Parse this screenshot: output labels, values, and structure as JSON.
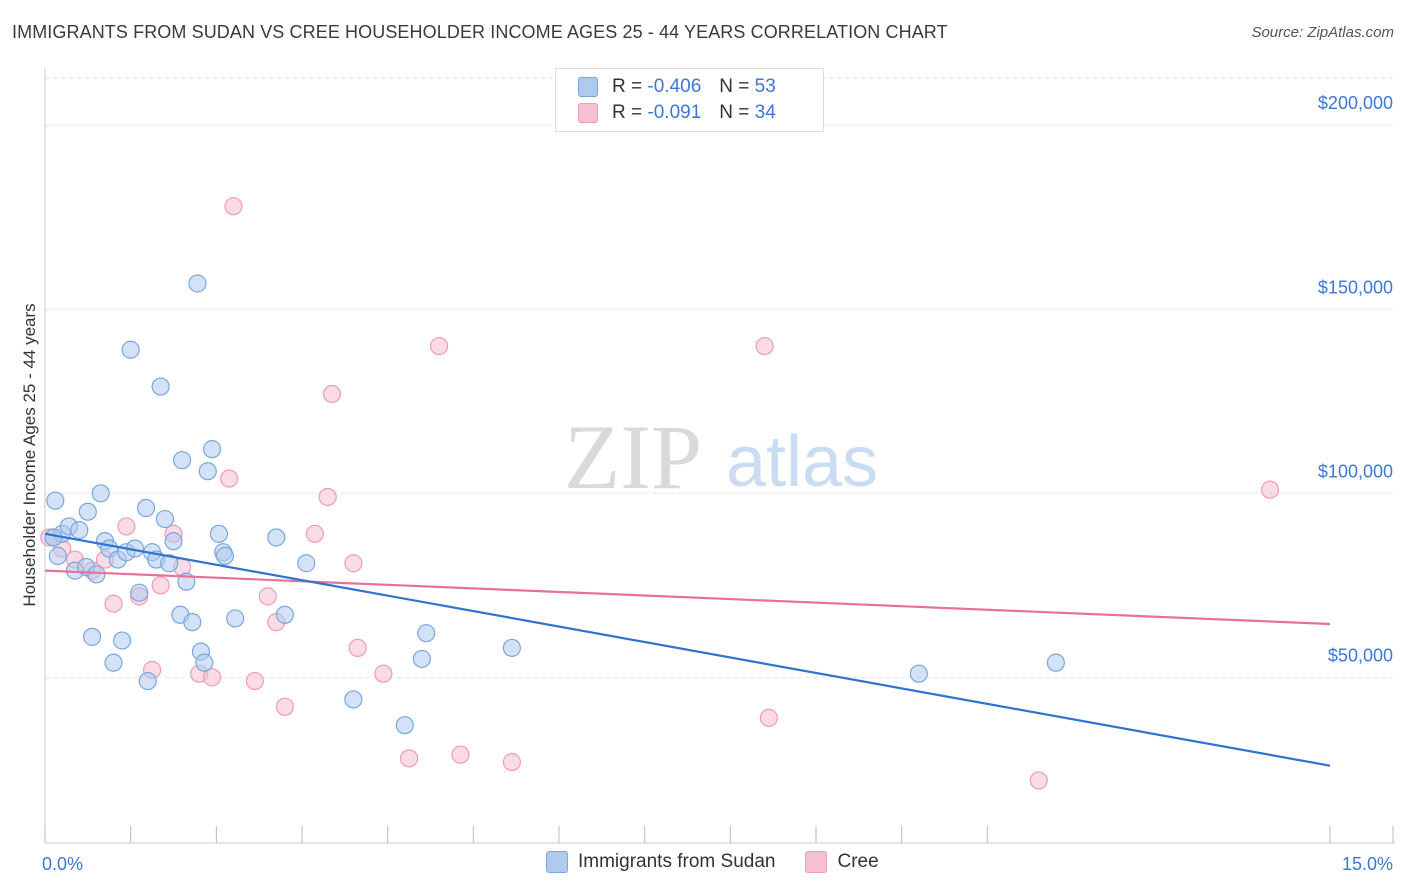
{
  "title": "IMMIGRANTS FROM SUDAN VS CREE HOUSEHOLDER INCOME AGES 25 - 44 YEARS CORRELATION CHART",
  "source": "Source: ZipAtlas.com",
  "watermark": {
    "zip": "ZIP",
    "atlas": "atlas"
  },
  "legend": {
    "rows": [
      {
        "r_label": "R =",
        "r_value": "-0.406",
        "n_label": "N =",
        "n_value": "53"
      },
      {
        "r_label": "R =",
        "r_value": "-0.091",
        "n_label": "N =",
        "n_value": "34"
      }
    ]
  },
  "bottom_legend": {
    "series1": "Immigrants from Sudan",
    "series2": "Cree"
  },
  "colors": {
    "series1_fill": "#aecbee",
    "series1_stroke": "#7aa7de",
    "series1_line": "#2f74d0",
    "series2_fill": "#f7c0d2",
    "series2_stroke": "#ef9bb6",
    "series2_line": "#e8709a",
    "axis_text": "#3b78d4",
    "grid": "#e2e2e2"
  },
  "chart_data": {
    "type": "scatter",
    "title": "IMMIGRANTS FROM SUDAN VS CREE HOUSEHOLDER INCOME AGES 25 - 44 YEARS CORRELATION CHART",
    "xlabel": "",
    "ylabel": "Householder Income Ages 25 - 44 years",
    "xlim": [
      0,
      15
    ],
    "ylim": [
      5000,
      215000
    ],
    "x_tick_labels": [
      "0.0%",
      "15.0%"
    ],
    "y_ticks": [
      50000,
      100000,
      150000,
      200000
    ],
    "y_tick_labels": [
      "$50,000",
      "$100,000",
      "$150,000",
      "$200,000"
    ],
    "series": [
      {
        "name": "Immigrants from Sudan",
        "trend": {
          "x": [
            0.0,
            15.0
          ],
          "y": [
            89000,
            26000
          ]
        },
        "points": [
          {
            "x": 0.1,
            "y": 88000
          },
          {
            "x": 0.12,
            "y": 98000
          },
          {
            "x": 0.15,
            "y": 83000
          },
          {
            "x": 0.2,
            "y": 89000
          },
          {
            "x": 0.28,
            "y": 91000
          },
          {
            "x": 0.35,
            "y": 79000
          },
          {
            "x": 0.4,
            "y": 90000
          },
          {
            "x": 0.48,
            "y": 80000
          },
          {
            "x": 0.5,
            "y": 95000
          },
          {
            "x": 0.55,
            "y": 61000
          },
          {
            "x": 0.6,
            "y": 78000
          },
          {
            "x": 0.65,
            "y": 100000
          },
          {
            "x": 0.7,
            "y": 87000
          },
          {
            "x": 0.75,
            "y": 85000
          },
          {
            "x": 0.8,
            "y": 54000
          },
          {
            "x": 0.85,
            "y": 82000
          },
          {
            "x": 0.9,
            "y": 60000
          },
          {
            "x": 0.95,
            "y": 84000
          },
          {
            "x": 1.0,
            "y": 139000
          },
          {
            "x": 1.05,
            "y": 85000
          },
          {
            "x": 1.1,
            "y": 73000
          },
          {
            "x": 1.18,
            "y": 96000
          },
          {
            "x": 1.2,
            "y": 49000
          },
          {
            "x": 1.25,
            "y": 84000
          },
          {
            "x": 1.3,
            "y": 82000
          },
          {
            "x": 1.35,
            "y": 129000
          },
          {
            "x": 1.4,
            "y": 93000
          },
          {
            "x": 1.45,
            "y": 81000
          },
          {
            "x": 1.5,
            "y": 87000
          },
          {
            "x": 1.58,
            "y": 67000
          },
          {
            "x": 1.6,
            "y": 109000
          },
          {
            "x": 1.65,
            "y": 76000
          },
          {
            "x": 1.72,
            "y": 65000
          },
          {
            "x": 1.78,
            "y": 157000
          },
          {
            "x": 1.82,
            "y": 57000
          },
          {
            "x": 1.86,
            "y": 54000
          },
          {
            "x": 1.9,
            "y": 106000
          },
          {
            "x": 1.95,
            "y": 112000
          },
          {
            "x": 2.03,
            "y": 89000
          },
          {
            "x": 2.08,
            "y": 84000
          },
          {
            "x": 2.1,
            "y": 83000
          },
          {
            "x": 2.22,
            "y": 66000
          },
          {
            "x": 2.7,
            "y": 88000
          },
          {
            "x": 2.8,
            "y": 67000
          },
          {
            "x": 3.05,
            "y": 81000
          },
          {
            "x": 3.6,
            "y": 44000
          },
          {
            "x": 4.2,
            "y": 37000
          },
          {
            "x": 4.4,
            "y": 55000
          },
          {
            "x": 4.45,
            "y": 62000
          },
          {
            "x": 5.45,
            "y": 58000
          },
          {
            "x": 10.2,
            "y": 51000
          },
          {
            "x": 11.8,
            "y": 54000
          },
          {
            "x": 0.1,
            "y": 88000
          }
        ]
      },
      {
        "name": "Cree",
        "trend": {
          "x": [
            0.0,
            15.0
          ],
          "y": [
            79000,
            64500
          ]
        },
        "points": [
          {
            "x": 0.05,
            "y": 88000
          },
          {
            "x": 0.2,
            "y": 85000
          },
          {
            "x": 0.35,
            "y": 82000
          },
          {
            "x": 0.55,
            "y": 79000
          },
          {
            "x": 0.7,
            "y": 82000
          },
          {
            "x": 0.8,
            "y": 70000
          },
          {
            "x": 0.95,
            "y": 91000
          },
          {
            "x": 1.1,
            "y": 72000
          },
          {
            "x": 1.25,
            "y": 52000
          },
          {
            "x": 1.35,
            "y": 75000
          },
          {
            "x": 1.5,
            "y": 89000
          },
          {
            "x": 1.6,
            "y": 80000
          },
          {
            "x": 1.8,
            "y": 51000
          },
          {
            "x": 1.95,
            "y": 50000
          },
          {
            "x": 2.15,
            "y": 104000
          },
          {
            "x": 2.2,
            "y": 178000
          },
          {
            "x": 2.45,
            "y": 49000
          },
          {
            "x": 2.6,
            "y": 72000
          },
          {
            "x": 2.7,
            "y": 65000
          },
          {
            "x": 2.8,
            "y": 42000
          },
          {
            "x": 3.15,
            "y": 89000
          },
          {
            "x": 3.3,
            "y": 99000
          },
          {
            "x": 3.35,
            "y": 127000
          },
          {
            "x": 3.6,
            "y": 81000
          },
          {
            "x": 3.65,
            "y": 58000
          },
          {
            "x": 3.95,
            "y": 51000
          },
          {
            "x": 4.25,
            "y": 28000
          },
          {
            "x": 4.6,
            "y": 140000
          },
          {
            "x": 4.85,
            "y": 29000
          },
          {
            "x": 5.45,
            "y": 27000
          },
          {
            "x": 8.4,
            "y": 140000
          },
          {
            "x": 8.45,
            "y": 39000
          },
          {
            "x": 11.6,
            "y": 22000
          },
          {
            "x": 14.3,
            "y": 101000
          }
        ]
      }
    ]
  }
}
